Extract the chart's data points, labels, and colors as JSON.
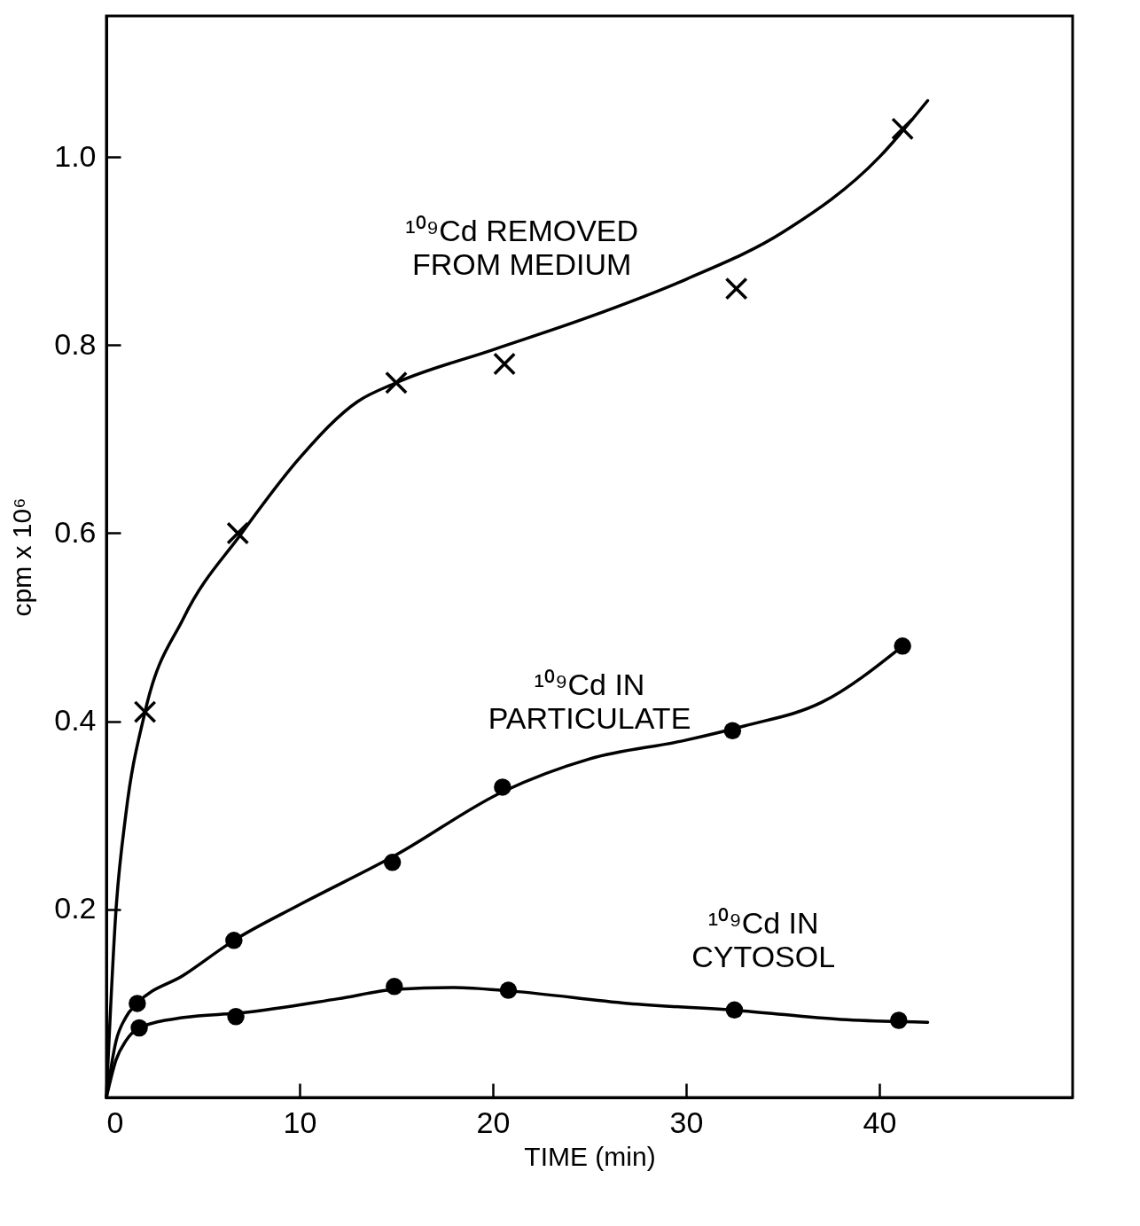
{
  "chart_data": {
    "type": "line",
    "xlabel": "TIME (min)",
    "ylabel": "cpm x 10⁶",
    "xlim": [
      0,
      50
    ],
    "xticks": [
      0,
      10,
      20,
      30,
      40
    ],
    "ylim": [
      0,
      1.15
    ],
    "yticks": [
      0.2,
      0.4,
      0.6,
      0.8,
      {
        "value": 1,
        "label": "1.0"
      }
    ],
    "grid": false,
    "line_style": "solid",
    "series": [
      {
        "color": "#000000",
        "marker": "none",
        "x": [
          0,
          0.5,
          1,
          2,
          4,
          7,
          10,
          13,
          15,
          20,
          25,
          30,
          35,
          40,
          42.5
        ],
        "values": [
          0,
          0.2,
          0.3,
          0.41,
          0.51,
          0.6,
          0.68,
          0.74,
          0.76,
          0.795,
          0.83,
          0.87,
          0.92,
          1.0,
          1.06
        ]
      },
      {
        "color": "#000000",
        "marker": "none",
        "x": [
          0,
          0.5,
          1,
          1.6,
          4,
          6.6,
          10,
          15,
          20.5,
          25,
          30,
          33,
          37,
          41.2
        ],
        "values": [
          0,
          0.06,
          0.085,
          0.1,
          0.13,
          0.167,
          0.205,
          0.258,
          0.325,
          0.36,
          0.38,
          0.395,
          0.42,
          0.48
        ]
      },
      {
        "color": "#000000",
        "marker": "none",
        "x": [
          0,
          0.5,
          1,
          1.7,
          4,
          7,
          12,
          15,
          18,
          21,
          27,
          33,
          38,
          42.5
        ],
        "values": [
          0,
          0.04,
          0.06,
          0.074,
          0.085,
          0.09,
          0.105,
          0.115,
          0.117,
          0.113,
          0.1,
          0.092,
          0.083,
          0.08
        ]
      },
      {
        "type": "scatter",
        "color": "#000000",
        "marker": "cross",
        "x": [
          2,
          6.8,
          15,
          20.6,
          32.6,
          41.2
        ],
        "values": [
          0.41,
          0.6,
          0.76,
          0.78,
          0.86,
          1.03
        ]
      },
      {
        "type": "scatter",
        "color": "#000000",
        "marker": "circle",
        "x": [
          1.6,
          6.6,
          14.8,
          20.5,
          32.4,
          41.2
        ],
        "values": [
          0.1,
          0.167,
          0.25,
          0.33,
          0.39,
          0.48
        ]
      },
      {
        "type": "scatter",
        "color": "#000000",
        "marker": "circle",
        "x": [
          1.7,
          6.7,
          14.9,
          20.8,
          32.5,
          41
        ],
        "values": [
          0.074,
          0.086,
          0.118,
          0.114,
          0.093,
          0.082
        ]
      }
    ],
    "annotations": [
      "¹⁰⁹Cd REMOVED\nFROM MEDIUM",
      "¹⁰⁹Cd IN\nPARTICULATE",
      "¹⁰⁹Cd IN\nCYTOSOL"
    ]
  }
}
